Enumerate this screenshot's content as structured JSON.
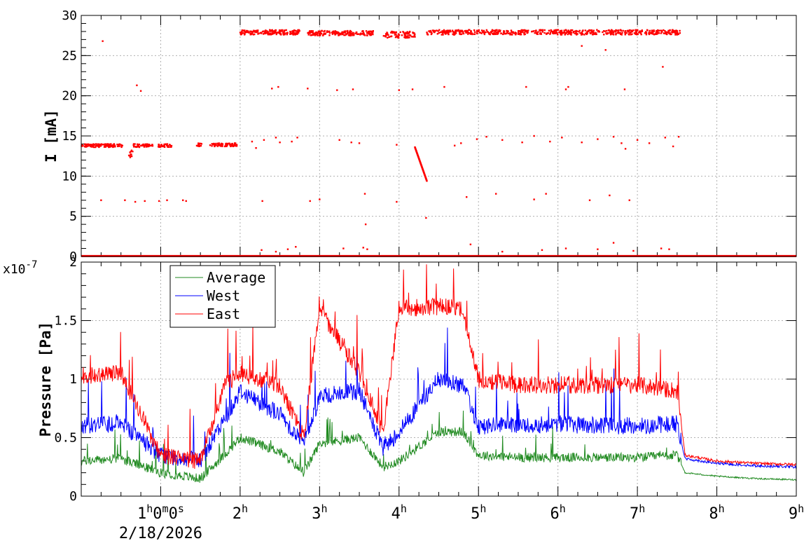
{
  "chart_data": [
    {
      "type": "scatter",
      "ylabel": "I [mA]",
      "ylim": [
        0,
        30
      ],
      "yticks": [
        0,
        5,
        10,
        15,
        20,
        25,
        30
      ],
      "xlim": [
        0,
        9
      ],
      "grid": true,
      "series": [
        {
          "color": "#ff0000",
          "x": [
            0.0,
            0.3,
            0.55,
            0.65,
            0.85,
            1.0,
            1.1,
            1.5,
            1.6,
            1.75,
            1.9,
            2.0,
            2.2,
            2.4,
            2.6,
            2.8,
            3.0,
            3.2,
            3.4,
            3.6,
            3.8,
            4.0,
            4.2,
            4.3,
            4.35,
            4.4,
            4.6,
            4.8,
            5.0,
            5.2,
            5.4,
            5.6,
            5.8,
            6.0,
            6.2,
            6.4,
            6.6,
            6.8,
            7.0,
            7.2,
            7.4,
            7.5
          ],
          "y": [
            13.8,
            13.8,
            13.7,
            13.9,
            13.7,
            13.8,
            13.8,
            13.9,
            13.8,
            13.9,
            13.8,
            27.8,
            27.9,
            28.0,
            28.0,
            27.8,
            27.9,
            27.8,
            27.9,
            27.8,
            27.9,
            27.7,
            13.5,
            11.0,
            9.5,
            27.8,
            27.9,
            27.8,
            27.9,
            27.9,
            28.0,
            27.9,
            28.0,
            27.9,
            28.0,
            27.9,
            27.8,
            28.0,
            27.9,
            28.0,
            28.1,
            27.9
          ]
        }
      ]
    },
    {
      "type": "line",
      "ylabel": "Pressure [Pa]",
      "yexponent": "x10",
      "yexponent_power": "-7",
      "ylim": [
        0,
        2
      ],
      "yticks": [
        "0",
        "0.5",
        "1",
        "1.5",
        "2"
      ],
      "xlim": [
        0,
        9
      ],
      "xticks": [
        {
          "base": "1",
          "sup": "h",
          "base2": "0",
          "sup2": "m",
          "base3": "0",
          "sup3": "s"
        },
        {
          "base": "2",
          "sup": "h"
        },
        {
          "base": "3",
          "sup": "h"
        },
        {
          "base": "4",
          "sup": "h"
        },
        {
          "base": "5",
          "sup": "h"
        },
        {
          "base": "6",
          "sup": "h"
        },
        {
          "base": "7",
          "sup": "h"
        },
        {
          "base": "8",
          "sup": "h"
        },
        {
          "base": "9",
          "sup": "h"
        }
      ],
      "date_label": "2/18/2026",
      "grid": true,
      "legend_position": "top-left",
      "series": [
        {
          "name": "Average",
          "color": "#228b22",
          "x": [
            0.0,
            0.5,
            1.0,
            1.5,
            1.8,
            2.0,
            2.5,
            2.8,
            3.0,
            3.5,
            3.8,
            4.0,
            4.5,
            4.8,
            5.0,
            5.5,
            6.0,
            6.5,
            7.0,
            7.5,
            7.6,
            8.0,
            8.5,
            9.0
          ],
          "y": [
            0.3,
            0.32,
            0.2,
            0.15,
            0.35,
            0.5,
            0.38,
            0.2,
            0.45,
            0.5,
            0.25,
            0.3,
            0.55,
            0.55,
            0.35,
            0.33,
            0.33,
            0.33,
            0.33,
            0.35,
            0.2,
            0.17,
            0.15,
            0.14
          ]
        },
        {
          "name": "West",
          "color": "#0000ff",
          "x": [
            0.0,
            0.5,
            1.0,
            1.5,
            1.8,
            2.0,
            2.5,
            2.8,
            3.0,
            3.5,
            3.8,
            4.0,
            4.5,
            4.8,
            5.0,
            5.5,
            6.0,
            6.5,
            7.0,
            7.5,
            7.6,
            8.0,
            8.5,
            9.0
          ],
          "y": [
            0.6,
            0.62,
            0.35,
            0.3,
            0.65,
            0.9,
            0.7,
            0.45,
            0.85,
            0.9,
            0.4,
            0.55,
            1.0,
            0.95,
            0.6,
            0.6,
            0.62,
            0.6,
            0.6,
            0.62,
            0.32,
            0.28,
            0.26,
            0.25
          ]
        },
        {
          "name": "East",
          "color": "#ff0000",
          "x": [
            0.0,
            0.5,
            1.0,
            1.5,
            1.8,
            2.0,
            2.5,
            2.8,
            3.0,
            3.5,
            3.8,
            4.0,
            4.5,
            4.8,
            5.0,
            5.5,
            6.0,
            6.5,
            7.0,
            7.5,
            7.6,
            8.0,
            8.5,
            9.0
          ],
          "y": [
            1.03,
            1.05,
            0.35,
            0.3,
            0.95,
            1.05,
            0.95,
            0.5,
            1.6,
            1.05,
            0.55,
            1.6,
            1.62,
            1.6,
            1.0,
            0.95,
            0.95,
            0.95,
            0.95,
            0.9,
            0.35,
            0.3,
            0.28,
            0.27
          ]
        }
      ]
    }
  ]
}
